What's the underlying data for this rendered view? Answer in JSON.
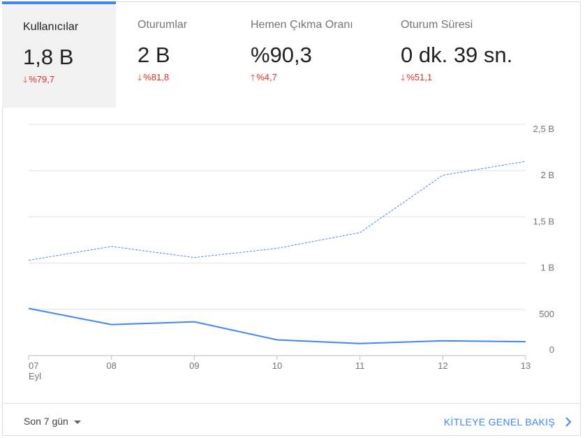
{
  "tabs": [
    {
      "title": "Kullanıcılar",
      "value": "1,8 B",
      "delta": "%79,7",
      "direction": "down"
    },
    {
      "title": "Oturumlar",
      "value": "2 B",
      "delta": "%81,8",
      "direction": "down"
    },
    {
      "title": "Hemen Çıkma Oranı",
      "value": "%90,3",
      "delta": "%4,7",
      "direction": "up"
    },
    {
      "title": "Oturum Süresi",
      "value": "0 dk. 39 sn.",
      "delta": "%51,1",
      "direction": "down"
    }
  ],
  "colors": {
    "accent": "#4285f4",
    "negative": "#d93025"
  },
  "chart_data": {
    "type": "line",
    "x": [
      "07",
      "08",
      "09",
      "10",
      "11",
      "12",
      "13"
    ],
    "x_sublabel": "Eyl",
    "y_ticks": [
      "2,5 B",
      "2 B",
      "1,5 B",
      "1 B",
      "500",
      "0"
    ],
    "ylim": [
      0,
      2500
    ],
    "series": [
      {
        "style": "solid",
        "values": [
          510,
          335,
          365,
          170,
          130,
          160,
          150
        ]
      },
      {
        "style": "dashed",
        "values": [
          1030,
          1180,
          1060,
          1160,
          1330,
          1950,
          2100
        ]
      }
    ]
  },
  "footer": {
    "range_label": "Son 7 gün",
    "link_label": "KİTLEYE GENEL BAKIŞ"
  }
}
